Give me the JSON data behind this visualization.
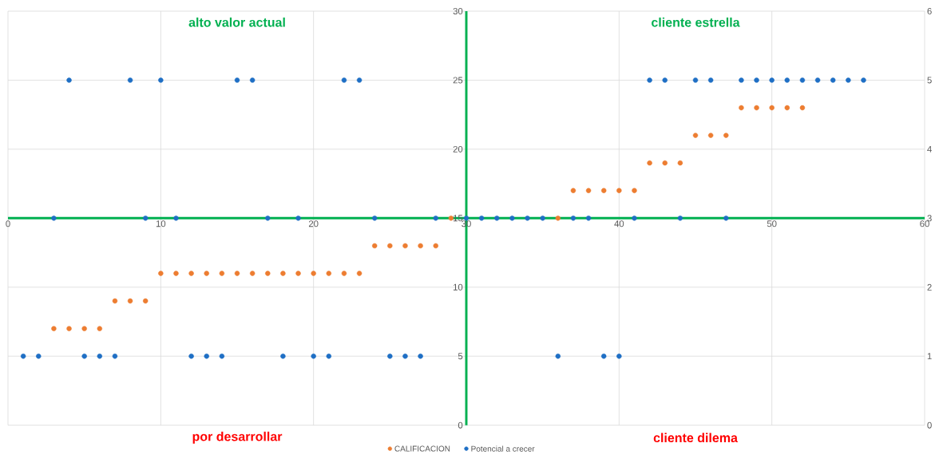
{
  "chart_data": {
    "type": "scatter",
    "x": [
      3,
      4,
      5,
      6,
      7,
      8,
      9,
      10,
      11,
      12,
      13,
      14,
      15,
      16,
      17,
      18,
      19,
      20,
      21,
      22,
      23,
      24,
      25,
      26,
      27,
      28,
      29,
      36,
      37,
      38,
      39,
      40,
      41,
      42,
      43,
      44,
      45,
      46,
      47,
      48,
      49,
      50,
      51,
      52
    ],
    "series": [
      {
        "name": "CALIFICACION",
        "color": "#ed7d31",
        "values": [
          7,
          7,
          7,
          7,
          9,
          9,
          9,
          11,
          11,
          11,
          11,
          11,
          11,
          11,
          11,
          11,
          11,
          11,
          11,
          11,
          11,
          13,
          13,
          13,
          13,
          13,
          15,
          15,
          17,
          17,
          17,
          17,
          17,
          19,
          19,
          19,
          21,
          21,
          21,
          23,
          23,
          23,
          23,
          23
        ]
      },
      {
        "name": "Potencial a crecer",
        "color": "#1f6fc5",
        "axis": "y2",
        "x": [
          1,
          2,
          3,
          4,
          5,
          6,
          7,
          8,
          9,
          10,
          11,
          12,
          13,
          14,
          15,
          16,
          17,
          18,
          19,
          20,
          21,
          22,
          23,
          24,
          25,
          26,
          27,
          28,
          30,
          31,
          32,
          33,
          34,
          35,
          36,
          37,
          38,
          39,
          40,
          41,
          42,
          43,
          44,
          45,
          46,
          47,
          48,
          49,
          50,
          51,
          52,
          53,
          54,
          55,
          56
        ],
        "values": [
          1,
          1,
          3,
          5,
          1,
          1,
          1,
          5,
          3,
          5,
          3,
          1,
          1,
          1,
          5,
          5,
          3,
          1,
          3,
          1,
          1,
          5,
          5,
          3,
          1,
          1,
          1,
          3,
          3,
          3,
          3,
          3,
          3,
          3,
          1,
          3,
          3,
          1,
          1,
          3,
          5,
          5,
          3,
          5,
          5,
          3,
          5,
          5,
          5,
          5,
          5,
          5,
          5,
          5,
          5
        ]
      }
    ],
    "xlim": [
      0,
      60
    ],
    "xticks": [
      0,
      10,
      20,
      30,
      40,
      50,
      60
    ],
    "ylim": [
      0,
      30
    ],
    "yticks": [
      0,
      5,
      10,
      15,
      20,
      25,
      30
    ],
    "y2lim": [
      0,
      6
    ],
    "y2ticks": [
      0,
      1,
      2,
      3,
      4,
      5,
      6
    ],
    "annotations": [
      "alto valor actual",
      "cliente estrella",
      "por desarrollar",
      "cliente dilema"
    ],
    "grid": true,
    "legend": "bottom",
    "marker": "circle"
  }
}
